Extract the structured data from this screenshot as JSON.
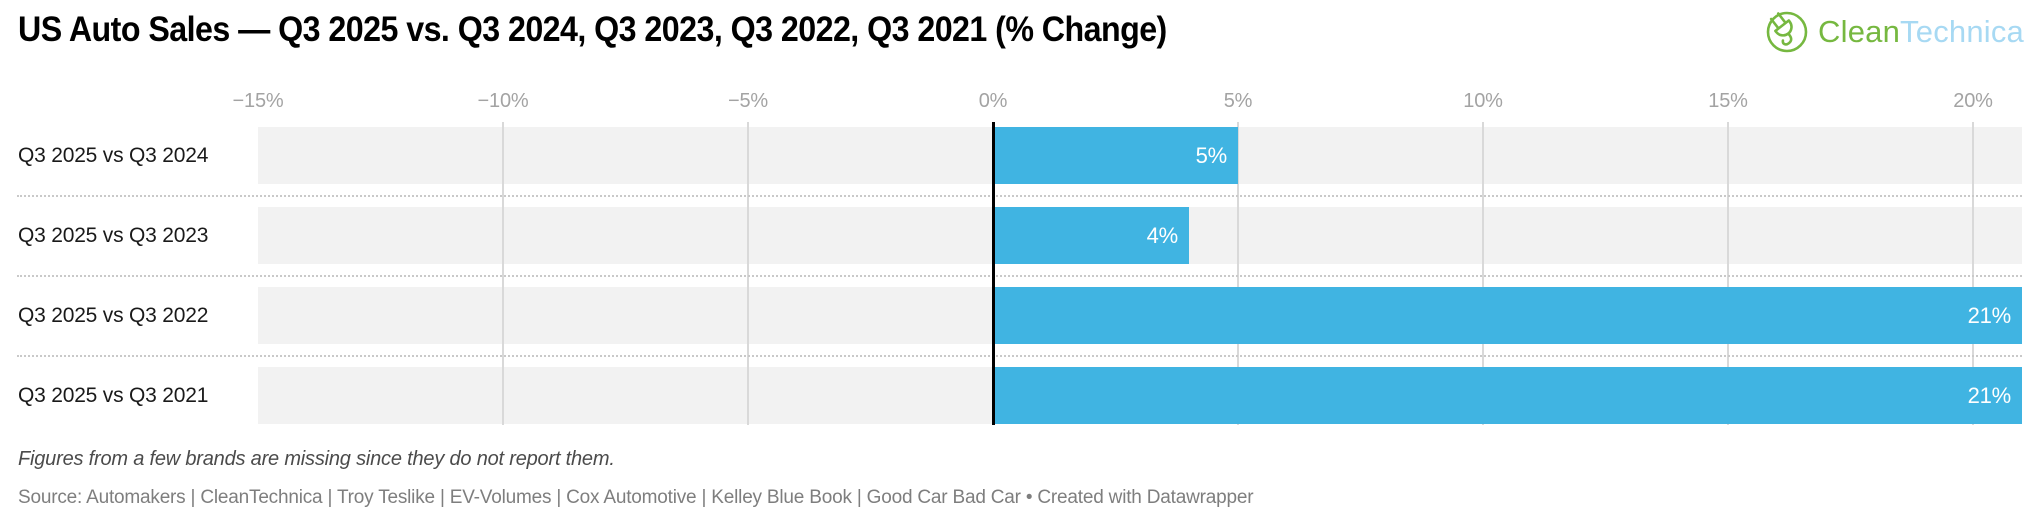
{
  "header": {
    "title": "US Auto Sales — Q3 2025 vs. Q3 2024, Q3 2023, Q3 2022, Q3 2021 (% Change)",
    "logo": {
      "icon": "plug-in-circle-icon",
      "green_text": "Clean",
      "blue_text": "Technica",
      "green_color": "#76b840",
      "blue_color": "#a7d9f3"
    }
  },
  "chart_data": {
    "type": "bar",
    "orientation": "horizontal",
    "title": "US Auto Sales — Q3 2025 vs. Q3 2024, Q3 2023, Q3 2022, Q3 2021 (% Change)",
    "categories": [
      "Q3 2025 vs Q3 2024",
      "Q3 2025 vs Q3 2023",
      "Q3 2025 vs Q3 2022",
      "Q3 2025 vs Q3 2021"
    ],
    "values": [
      5,
      4,
      21,
      21
    ],
    "value_labels": [
      "5%",
      "4%",
      "21%",
      "21%"
    ],
    "xaxis": {
      "min": -15,
      "max": 21,
      "ticks": [
        -15,
        -10,
        -5,
        0,
        5,
        10,
        15,
        20
      ],
      "tick_labels": [
        "−15%",
        "−10%",
        "−5%",
        "0%",
        "5%",
        "10%",
        "15%",
        "20%"
      ]
    },
    "grid": true,
    "legend": "none",
    "bar_color": "#40b4e2",
    "row_bg_color": "#f2f2f2",
    "gridline_color": "#d9d9d9",
    "baseline_color": "#000000",
    "value_label_color": "#ffffff"
  },
  "footer": {
    "footnote": "Figures from a few brands are missing since they do not report them.",
    "source": "Source: Automakers | CleanTechnica | Troy Teslike | EV-Volumes | Cox Automotive | Kelley Blue Book | Good Car Bad Car • Created with Datawrapper"
  }
}
